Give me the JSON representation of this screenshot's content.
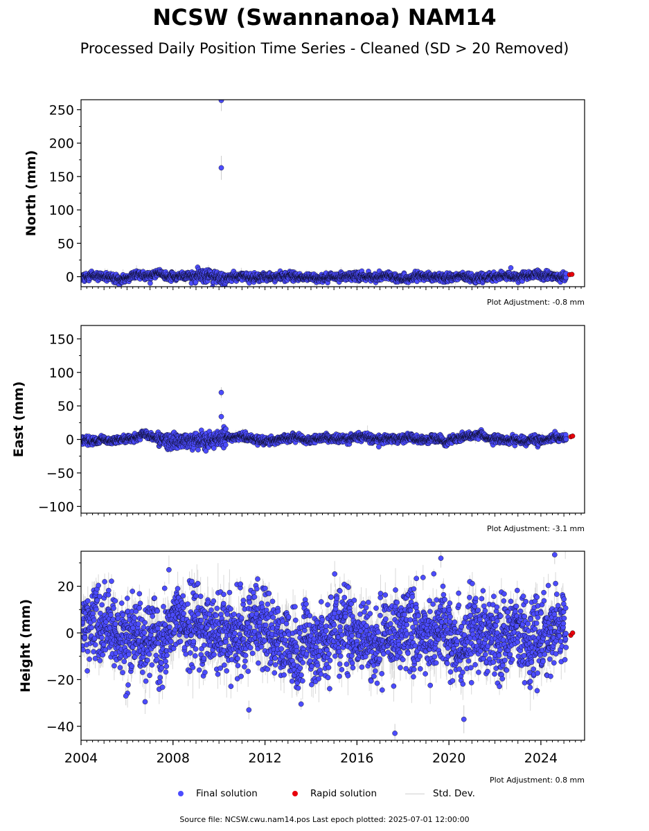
{
  "title": "NCSW (Swannanoa) NAM14",
  "subtitle": "Processed Daily Position Time Series - Cleaned (SD > 20 Removed)",
  "source_text": "Source file: NCSW.cwu.nam14.pos  Last epoch plotted: 2025-07-01 12:00:00",
  "legend": {
    "final": "Final solution",
    "rapid": "Rapid solution",
    "std": "Std. Dev."
  },
  "colors": {
    "final": "#4c4cff",
    "rapid": "#e8000b",
    "std": "#999999",
    "edge": "#000000"
  },
  "chart_data": [
    {
      "type": "scatter",
      "component": "north",
      "ylabel": "North (mm)",
      "xlim": [
        2004.0,
        2025.9
      ],
      "ylim": [
        -15,
        265
      ],
      "yticks": [
        0,
        50,
        100,
        150,
        200,
        250
      ],
      "xticks": [],
      "adjustment_text": "Plot Adjustment: -0.8 mm",
      "noise": {
        "sd": 2.8,
        "err": 4.5,
        "wander": 2.5
      },
      "outliers": [
        {
          "x": 2010.1,
          "y": 163,
          "err": 18
        },
        {
          "x": 2010.1,
          "y": 264,
          "err": 16
        }
      ],
      "rapid_points": [
        {
          "x": 2025.25,
          "y": 3
        },
        {
          "x": 2025.35,
          "y": 3.5
        }
      ]
    },
    {
      "type": "scatter",
      "component": "east",
      "ylabel": "East (mm)",
      "xlim": [
        2004.0,
        2025.9
      ],
      "ylim": [
        -110,
        170
      ],
      "yticks": [
        -100,
        -50,
        0,
        50,
        100,
        150
      ],
      "xticks": [],
      "adjustment_text": "Plot Adjustment: -3.1 mm",
      "noise": {
        "sd": 2.6,
        "err": 4.0,
        "wander": 3.0
      },
      "outliers": [
        {
          "x": 2010.1,
          "y": 70,
          "err": 8
        },
        {
          "x": 2010.1,
          "y": 34,
          "err": 8
        },
        {
          "x": 2016.95,
          "y": -11,
          "err": 4
        }
      ],
      "rapid_points": [
        {
          "x": 2025.3,
          "y": 4
        },
        {
          "x": 2025.38,
          "y": 5
        }
      ]
    },
    {
      "type": "scatter",
      "component": "height",
      "ylabel": "Height (mm)",
      "xlim": [
        2004.0,
        2025.9
      ],
      "ylim": [
        -46,
        35
      ],
      "yticks": [
        -40,
        -20,
        0,
        20
      ],
      "xticks": [
        "2004",
        "2008",
        "2012",
        "2016",
        "2020",
        "2024"
      ],
      "adjustment_text": "Plot Adjustment: 0.8 mm",
      "noise": {
        "sd": 8.0,
        "err": 6.0,
        "wander": 5.0
      },
      "outliers": [
        {
          "x": 2011.3,
          "y": -33,
          "err": 4
        },
        {
          "x": 2017.65,
          "y": -43,
          "err": 4
        },
        {
          "x": 2020.65,
          "y": -37,
          "err": 6
        },
        {
          "x": 2019.65,
          "y": 32,
          "err": 4
        },
        {
          "x": 2024.6,
          "y": 33.5,
          "err": 4
        },
        {
          "x": 2005.95,
          "y": -27,
          "err": 4
        }
      ],
      "rapid_points": [
        {
          "x": 2025.3,
          "y": -1
        },
        {
          "x": 2025.38,
          "y": 0
        }
      ]
    }
  ]
}
